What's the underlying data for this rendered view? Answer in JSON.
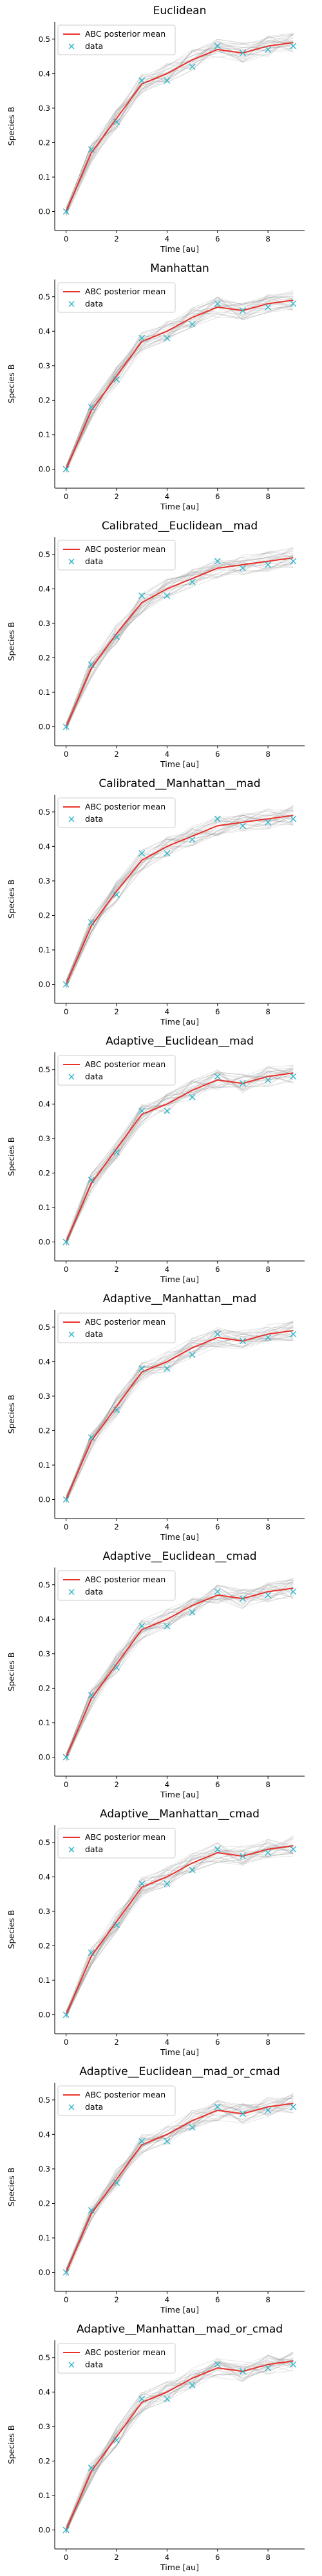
{
  "chart_data": [
    {
      "type": "line",
      "title": "Euclidean",
      "xlabel": "Time [au]",
      "ylabel": "Species B",
      "legend_position": "upper-left",
      "x_ticks": [
        0,
        2,
        4,
        6,
        8
      ],
      "y_ticks": [
        0.0,
        0.1,
        0.2,
        0.3,
        0.4,
        0.5
      ],
      "series": [
        {
          "name": "ABC posterior mean",
          "color": "#e8312a",
          "style": "line",
          "x": [
            0,
            1,
            2,
            3,
            4,
            5,
            6,
            7,
            8,
            9
          ],
          "y": [
            0.0,
            0.17,
            0.27,
            0.37,
            0.4,
            0.44,
            0.47,
            0.46,
            0.48,
            0.49
          ]
        },
        {
          "name": "data",
          "color": "#2fb6c9",
          "style": "marker-x",
          "x": [
            0,
            1,
            2,
            3,
            4,
            5,
            6,
            7,
            8,
            9
          ],
          "y": [
            0.0,
            0.18,
            0.26,
            0.38,
            0.38,
            0.42,
            0.48,
            0.46,
            0.47,
            0.48
          ]
        }
      ]
    },
    {
      "type": "line",
      "title": "Manhattan",
      "xlabel": "Time [au]",
      "ylabel": "Species B",
      "legend_position": "upper-left",
      "x_ticks": [
        0,
        2,
        4,
        6,
        8
      ],
      "y_ticks": [
        0.0,
        0.1,
        0.2,
        0.3,
        0.4,
        0.5
      ],
      "series": [
        {
          "name": "ABC posterior mean",
          "color": "#e8312a",
          "style": "line",
          "x": [
            0,
            1,
            2,
            3,
            4,
            5,
            6,
            7,
            8,
            9
          ],
          "y": [
            0.0,
            0.17,
            0.27,
            0.37,
            0.4,
            0.44,
            0.47,
            0.46,
            0.48,
            0.49
          ]
        },
        {
          "name": "data",
          "color": "#2fb6c9",
          "style": "marker-x",
          "x": [
            0,
            1,
            2,
            3,
            4,
            5,
            6,
            7,
            8,
            9
          ],
          "y": [
            0.0,
            0.18,
            0.26,
            0.38,
            0.38,
            0.42,
            0.48,
            0.46,
            0.47,
            0.48
          ]
        }
      ]
    },
    {
      "type": "line",
      "title": "Calibrated__Euclidean__mad",
      "xlabel": "Time [au]",
      "ylabel": "Species B",
      "legend_position": "upper-left",
      "x_ticks": [
        0,
        2,
        4,
        6,
        8
      ],
      "y_ticks": [
        0.0,
        0.1,
        0.2,
        0.3,
        0.4,
        0.5
      ],
      "series": [
        {
          "name": "ABC posterior mean",
          "color": "#e8312a",
          "style": "line",
          "x": [
            0,
            1,
            2,
            3,
            4,
            5,
            6,
            7,
            8,
            9
          ],
          "y": [
            0.0,
            0.17,
            0.27,
            0.36,
            0.4,
            0.43,
            0.46,
            0.47,
            0.48,
            0.49
          ]
        },
        {
          "name": "data",
          "color": "#2fb6c9",
          "style": "marker-x",
          "x": [
            0,
            1,
            2,
            3,
            4,
            5,
            6,
            7,
            8,
            9
          ],
          "y": [
            0.0,
            0.18,
            0.26,
            0.38,
            0.38,
            0.42,
            0.48,
            0.46,
            0.47,
            0.48
          ]
        }
      ]
    },
    {
      "type": "line",
      "title": "Calibrated__Manhattan__mad",
      "xlabel": "Time [au]",
      "ylabel": "Species B",
      "legend_position": "upper-left",
      "x_ticks": [
        0,
        2,
        4,
        6,
        8
      ],
      "y_ticks": [
        0.0,
        0.1,
        0.2,
        0.3,
        0.4,
        0.5
      ],
      "series": [
        {
          "name": "ABC posterior mean",
          "color": "#e8312a",
          "style": "line",
          "x": [
            0,
            1,
            2,
            3,
            4,
            5,
            6,
            7,
            8,
            9
          ],
          "y": [
            0.0,
            0.17,
            0.27,
            0.36,
            0.4,
            0.43,
            0.46,
            0.47,
            0.48,
            0.49
          ]
        },
        {
          "name": "data",
          "color": "#2fb6c9",
          "style": "marker-x",
          "x": [
            0,
            1,
            2,
            3,
            4,
            5,
            6,
            7,
            8,
            9
          ],
          "y": [
            0.0,
            0.18,
            0.26,
            0.38,
            0.38,
            0.42,
            0.48,
            0.46,
            0.47,
            0.48
          ]
        }
      ]
    },
    {
      "type": "line",
      "title": "Adaptive__Euclidean__mad",
      "xlabel": "Time [au]",
      "ylabel": "Species B",
      "legend_position": "upper-left",
      "x_ticks": [
        0,
        2,
        4,
        6,
        8
      ],
      "y_ticks": [
        0.0,
        0.1,
        0.2,
        0.3,
        0.4,
        0.5
      ],
      "series": [
        {
          "name": "ABC posterior mean",
          "color": "#e8312a",
          "style": "line",
          "x": [
            0,
            1,
            2,
            3,
            4,
            5,
            6,
            7,
            8,
            9
          ],
          "y": [
            0.0,
            0.17,
            0.27,
            0.37,
            0.4,
            0.44,
            0.47,
            0.46,
            0.48,
            0.49
          ]
        },
        {
          "name": "data",
          "color": "#2fb6c9",
          "style": "marker-x",
          "x": [
            0,
            1,
            2,
            3,
            4,
            5,
            6,
            7,
            8,
            9
          ],
          "y": [
            0.0,
            0.18,
            0.26,
            0.38,
            0.38,
            0.42,
            0.48,
            0.46,
            0.47,
            0.48
          ]
        }
      ]
    },
    {
      "type": "line",
      "title": "Adaptive__Manhattan__mad",
      "xlabel": "Time [au]",
      "ylabel": "Species B",
      "legend_position": "upper-left",
      "x_ticks": [
        0,
        2,
        4,
        6,
        8
      ],
      "y_ticks": [
        0.0,
        0.1,
        0.2,
        0.3,
        0.4,
        0.5
      ],
      "series": [
        {
          "name": "ABC posterior mean",
          "color": "#e8312a",
          "style": "line",
          "x": [
            0,
            1,
            2,
            3,
            4,
            5,
            6,
            7,
            8,
            9
          ],
          "y": [
            0.0,
            0.17,
            0.27,
            0.37,
            0.4,
            0.44,
            0.47,
            0.46,
            0.48,
            0.49
          ]
        },
        {
          "name": "data",
          "color": "#2fb6c9",
          "style": "marker-x",
          "x": [
            0,
            1,
            2,
            3,
            4,
            5,
            6,
            7,
            8,
            9
          ],
          "y": [
            0.0,
            0.18,
            0.26,
            0.38,
            0.38,
            0.42,
            0.48,
            0.46,
            0.47,
            0.48
          ]
        }
      ]
    },
    {
      "type": "line",
      "title": "Adaptive__Euclidean__cmad",
      "xlabel": "Time [au]",
      "ylabel": "Species B",
      "legend_position": "upper-left",
      "x_ticks": [
        0,
        2,
        4,
        6,
        8
      ],
      "y_ticks": [
        0.0,
        0.1,
        0.2,
        0.3,
        0.4,
        0.5
      ],
      "series": [
        {
          "name": "ABC posterior mean",
          "color": "#e8312a",
          "style": "line",
          "x": [
            0,
            1,
            2,
            3,
            4,
            5,
            6,
            7,
            8,
            9
          ],
          "y": [
            0.0,
            0.17,
            0.27,
            0.37,
            0.4,
            0.44,
            0.47,
            0.46,
            0.48,
            0.49
          ]
        },
        {
          "name": "data",
          "color": "#2fb6c9",
          "style": "marker-x",
          "x": [
            0,
            1,
            2,
            3,
            4,
            5,
            6,
            7,
            8,
            9
          ],
          "y": [
            0.0,
            0.18,
            0.26,
            0.38,
            0.38,
            0.42,
            0.48,
            0.46,
            0.47,
            0.48
          ]
        }
      ]
    },
    {
      "type": "line",
      "title": "Adaptive__Manhattan__cmad",
      "xlabel": "Time [au]",
      "ylabel": "Species B",
      "legend_position": "upper-left",
      "x_ticks": [
        0,
        2,
        4,
        6,
        8
      ],
      "y_ticks": [
        0.0,
        0.1,
        0.2,
        0.3,
        0.4,
        0.5
      ],
      "series": [
        {
          "name": "ABC posterior mean",
          "color": "#e8312a",
          "style": "line",
          "x": [
            0,
            1,
            2,
            3,
            4,
            5,
            6,
            7,
            8,
            9
          ],
          "y": [
            0.0,
            0.17,
            0.27,
            0.37,
            0.4,
            0.44,
            0.47,
            0.46,
            0.48,
            0.49
          ]
        },
        {
          "name": "data",
          "color": "#2fb6c9",
          "style": "marker-x",
          "x": [
            0,
            1,
            2,
            3,
            4,
            5,
            6,
            7,
            8,
            9
          ],
          "y": [
            0.0,
            0.18,
            0.26,
            0.38,
            0.38,
            0.42,
            0.48,
            0.46,
            0.47,
            0.48
          ]
        }
      ]
    },
    {
      "type": "line",
      "title": "Adaptive__Euclidean__mad_or_cmad",
      "xlabel": "Time [au]",
      "ylabel": "Species B",
      "legend_position": "upper-left",
      "x_ticks": [
        0,
        2,
        4,
        6,
        8
      ],
      "y_ticks": [
        0.0,
        0.1,
        0.2,
        0.3,
        0.4,
        0.5
      ],
      "series": [
        {
          "name": "ABC posterior mean",
          "color": "#e8312a",
          "style": "line",
          "x": [
            0,
            1,
            2,
            3,
            4,
            5,
            6,
            7,
            8,
            9
          ],
          "y": [
            0.0,
            0.17,
            0.27,
            0.37,
            0.4,
            0.44,
            0.47,
            0.46,
            0.48,
            0.49
          ]
        },
        {
          "name": "data",
          "color": "#2fb6c9",
          "style": "marker-x",
          "x": [
            0,
            1,
            2,
            3,
            4,
            5,
            6,
            7,
            8,
            9
          ],
          "y": [
            0.0,
            0.18,
            0.26,
            0.38,
            0.38,
            0.42,
            0.48,
            0.46,
            0.47,
            0.48
          ]
        }
      ]
    },
    {
      "type": "line",
      "title": "Adaptive__Manhattan__mad_or_cmad",
      "xlabel": "Time [au]",
      "ylabel": "Species B",
      "legend_position": "upper-left",
      "x_ticks": [
        0,
        2,
        4,
        6,
        8
      ],
      "y_ticks": [
        0.0,
        0.1,
        0.2,
        0.3,
        0.4,
        0.5
      ],
      "series": [
        {
          "name": "ABC posterior mean",
          "color": "#e8312a",
          "style": "line",
          "x": [
            0,
            1,
            2,
            3,
            4,
            5,
            6,
            7,
            8,
            9
          ],
          "y": [
            0.0,
            0.17,
            0.27,
            0.37,
            0.4,
            0.44,
            0.47,
            0.46,
            0.48,
            0.49
          ]
        },
        {
          "name": "data",
          "color": "#2fb6c9",
          "style": "marker-x",
          "x": [
            0,
            1,
            2,
            3,
            4,
            5,
            6,
            7,
            8,
            9
          ],
          "y": [
            0.0,
            0.18,
            0.26,
            0.38,
            0.38,
            0.42,
            0.48,
            0.46,
            0.47,
            0.48
          ]
        }
      ]
    }
  ]
}
